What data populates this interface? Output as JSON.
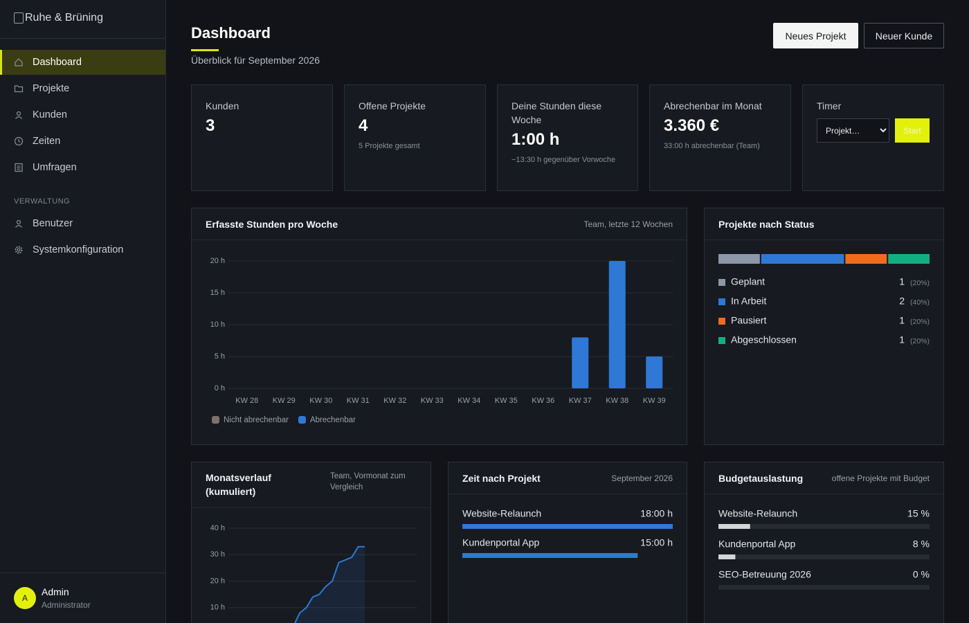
{
  "sidebar": {
    "brand": "Ruhe & Brüning",
    "nav": [
      "Dashboard",
      "Projekte",
      "Kunden",
      "Zeiten",
      "Umfragen"
    ],
    "section": "VERWALTUNG",
    "admin_nav": [
      "Benutzer",
      "Systemkonfiguration"
    ],
    "user": {
      "initial": "A",
      "name": "Admin",
      "role": "Administrator"
    }
  },
  "header": {
    "title": "Dashboard",
    "subtitle": "Überblick für September 2026",
    "buttons": [
      "Neues Projekt",
      "Neuer Kunde"
    ]
  },
  "stats": [
    {
      "label": "Kunden",
      "value": 3
    },
    {
      "label": "Offene Projekte",
      "value": 4,
      "note": "5 Projekte gesamt"
    },
    {
      "label": "Deine Stunden diese Woche",
      "value": "1:00 h",
      "note": "−13:30 h gegenüber Vorwoche"
    },
    {
      "label": "Abrechenbar im Monat",
      "value": "3.360 €",
      "note": "33:00 h abrechenbar (Team)"
    }
  ],
  "timer": {
    "label": "Timer",
    "select": "Projekt…",
    "button": "Start"
  },
  "chart_data": [
    {
      "type": "bar",
      "title": "Erfasste Stunden pro Woche",
      "subtitle": "Team, letzte 12 Wochen",
      "stacked": true,
      "categories": [
        "KW 28",
        "KW 29",
        "KW 30",
        "KW 31",
        "KW 32",
        "KW 33",
        "KW 34",
        "KW 35",
        "KW 36",
        "KW 37",
        "KW 38",
        "KW 39"
      ],
      "series": [
        {
          "name": "Nicht abrechenbar",
          "color": "#7d716c",
          "values": [
            0,
            0,
            0,
            0,
            0,
            0,
            0,
            0,
            0,
            0,
            0,
            0
          ]
        },
        {
          "name": "Abrechenbar",
          "color": "#2f78d6",
          "values": [
            0,
            0,
            0,
            0,
            0,
            0,
            0,
            0,
            0,
            8,
            20,
            5
          ]
        }
      ],
      "ylim": [
        0,
        20
      ],
      "yticks": [
        {
          "value": 0,
          "label": "0 h"
        },
        {
          "value": 5,
          "label": "5 h"
        },
        {
          "value": 10,
          "label": "10 h"
        },
        {
          "value": 15,
          "label": "15 h"
        },
        {
          "value": 20,
          "label": "20 h"
        }
      ],
      "grid": true
    },
    {
      "type": "share-bar",
      "title": "Projekte nach Status",
      "categories": [
        "Geplant",
        "In Arbeit",
        "Pausiert",
        "Abgeschlossen"
      ],
      "values": [
        1,
        2,
        1,
        1
      ],
      "shares": [
        20,
        40,
        20,
        20
      ],
      "share_labels": [
        "(20%)",
        "(40%)",
        "(20%)",
        "(20%)"
      ],
      "colors": [
        "#8c97a8",
        "#2f78d6",
        "#f26b1d",
        "#12b080"
      ]
    },
    {
      "type": "area",
      "title": "Monatsverlauf (kumuliert)",
      "subtitle": "Team, Vormonat zum Vergleich",
      "x": [
        1,
        2,
        3,
        4,
        5,
        6,
        7,
        8,
        9,
        10,
        11,
        12,
        13,
        14,
        15,
        16,
        17,
        18,
        19,
        20,
        21,
        22
      ],
      "values": [
        0,
        0,
        0,
        0,
        0,
        0,
        0,
        0,
        0,
        0,
        3,
        8,
        10,
        14,
        15,
        18,
        20,
        27,
        28,
        29,
        33,
        33
      ],
      "color": "#2f78d6",
      "xlim": [
        1,
        30
      ],
      "ylim": [
        0,
        40
      ],
      "yticks": [
        {
          "value": 10,
          "label": "10 h"
        },
        {
          "value": 20,
          "label": "20 h"
        },
        {
          "value": 30,
          "label": "30 h"
        },
        {
          "value": 40,
          "label": "40 h"
        }
      ],
      "grid": true
    }
  ],
  "time_by_project": {
    "title": "Zeit nach Projekt",
    "subtitle": "September 2026",
    "color": "#2f78d6",
    "items": [
      {
        "name": "Website-Relaunch",
        "value": 18,
        "label": "18:00 h"
      },
      {
        "name": "Kundenportal App",
        "value": 15,
        "label": "15:00 h"
      }
    ]
  },
  "budget": {
    "title": "Budgetauslastung",
    "subtitle": "offene Projekte mit Budget",
    "color": "#d4d5d8",
    "items": [
      {
        "name": "Website-Relaunch",
        "value": 15,
        "label": "15 %"
      },
      {
        "name": "Kundenportal App",
        "value": 8,
        "label": "8 %"
      },
      {
        "name": "SEO-Betreuung 2026",
        "value": 0,
        "label": "0 %"
      }
    ]
  }
}
